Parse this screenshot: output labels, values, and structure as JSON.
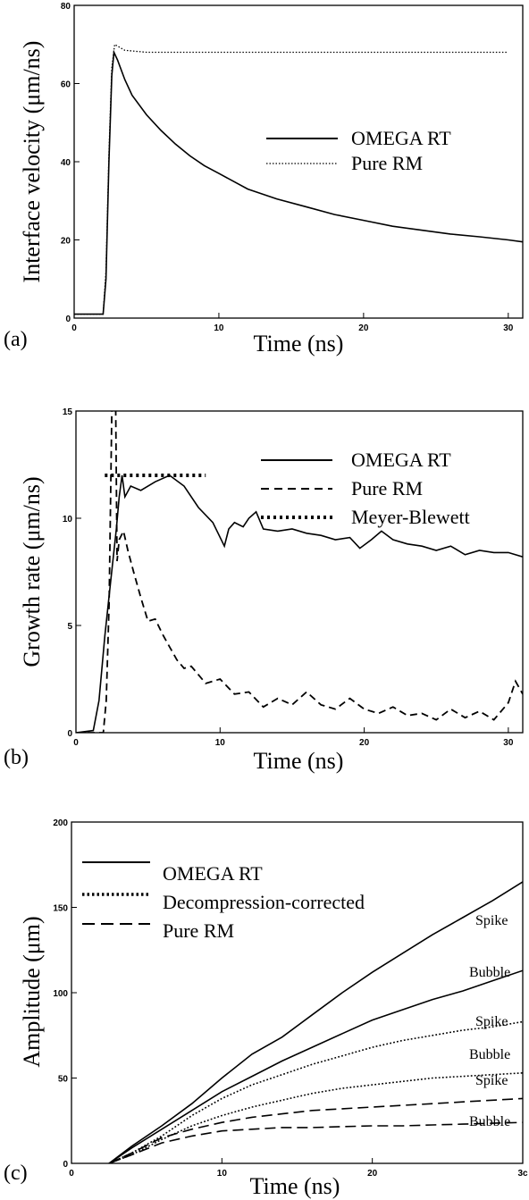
{
  "chart_data": [
    {
      "type": "line",
      "panel_label": "(a)",
      "xlabel": "Time (ns)",
      "ylabel": "Interface velocity (μm/ns)",
      "xlim": [
        0,
        31
      ],
      "ylim": [
        0,
        80
      ],
      "xticks": [
        0,
        10,
        20,
        30
      ],
      "yticks": [
        0,
        20,
        40,
        60,
        80
      ],
      "legend_position": "center-right",
      "series": [
        {
          "name": "OMEGA RT",
          "style": "solid",
          "x": [
            0,
            2.0,
            2.2,
            2.4,
            2.6,
            2.75,
            3.0,
            3.5,
            4,
            5,
            6,
            7,
            8,
            9,
            10,
            12,
            14,
            16,
            18,
            20,
            22,
            24,
            26,
            28,
            30,
            31
          ],
          "y": [
            1,
            1,
            10,
            40,
            62,
            68,
            66,
            61,
            57,
            52,
            48,
            44.5,
            41.5,
            39,
            37,
            33,
            30.5,
            28.5,
            26.5,
            25,
            23.5,
            22.5,
            21.5,
            20.8,
            20,
            19.5
          ]
        },
        {
          "name": "Pure RM",
          "style": "dotted",
          "x": [
            0,
            2.0,
            2.2,
            2.4,
            2.6,
            2.8,
            3.5,
            5,
            8,
            12,
            16,
            20,
            24,
            28,
            30
          ],
          "y": [
            1,
            1,
            12,
            42,
            64,
            70,
            68.5,
            68,
            68,
            68,
            68,
            68,
            68,
            68,
            68
          ]
        }
      ]
    },
    {
      "type": "line",
      "panel_label": "(b)",
      "xlabel": "Time (ns)",
      "ylabel": "Growth rate (μm/ns)",
      "xlim": [
        0,
        31
      ],
      "ylim": [
        0,
        15
      ],
      "xticks": [
        0,
        10,
        20,
        30
      ],
      "yticks": [
        0,
        5,
        10,
        15
      ],
      "legend_position": "top-right",
      "series": [
        {
          "name": "OMEGA RT",
          "style": "solid",
          "x": [
            0,
            1.2,
            1.6,
            2.0,
            2.4,
            2.8,
            3.0,
            3.2,
            3.4,
            3.8,
            4.5,
            5.5,
            6.5,
            7.5,
            8.5,
            9.5,
            10.3,
            10.6,
            11,
            11.6,
            12,
            12.5,
            13,
            14,
            15,
            16,
            17,
            18,
            19,
            19.7,
            20.5,
            21.2,
            22,
            23,
            24,
            25,
            26,
            27,
            28,
            29,
            30,
            31
          ],
          "y": [
            0,
            0.1,
            1.5,
            4.5,
            7,
            9.5,
            11,
            12,
            11,
            11.5,
            11.3,
            11.7,
            12,
            11.5,
            10.5,
            9.8,
            8.7,
            9.5,
            9.8,
            9.6,
            10,
            10.3,
            9.5,
            9.4,
            9.5,
            9.3,
            9.2,
            9.0,
            9.1,
            8.6,
            9.0,
            9.4,
            9.0,
            8.8,
            8.7,
            8.5,
            8.7,
            8.3,
            8.5,
            8.4,
            8.4,
            8.2
          ]
        },
        {
          "name": "Pure RM",
          "style": "dashed",
          "x": [
            0,
            1.9,
            2.1,
            2.3,
            2.5,
            2.6,
            2.75,
            2.85,
            3.0,
            3.3,
            3.6,
            4.0,
            4.5,
            5.0,
            5.5,
            6.0,
            6.5,
            7.0,
            7.5,
            8.0,
            8.5,
            9.0,
            10,
            11,
            12,
            13,
            14,
            15,
            16,
            17,
            18,
            19,
            20,
            21,
            22,
            23,
            24,
            25,
            26,
            27,
            28,
            29,
            30,
            30.5,
            31
          ],
          "y": [
            0,
            0,
            1.5,
            6,
            15.5,
            15.5,
            15.5,
            8,
            9,
            9.4,
            8.5,
            7.5,
            6.3,
            5.2,
            5.3,
            4.6,
            4.0,
            3.4,
            3.0,
            3.1,
            2.7,
            2.3,
            2.5,
            1.8,
            1.9,
            1.2,
            1.6,
            1.3,
            1.9,
            1.3,
            1.1,
            1.6,
            1.1,
            0.9,
            1.2,
            0.8,
            0.9,
            0.6,
            1.1,
            0.7,
            1.0,
            0.6,
            1.4,
            2.4,
            1.8
          ]
        },
        {
          "name": "Meyer-Blewett",
          "style": "dotted",
          "x": [
            2.0,
            9.0
          ],
          "y": [
            12,
            12
          ]
        }
      ]
    },
    {
      "type": "line",
      "panel_label": "(c)",
      "xlabel": "Time (ns)",
      "ylabel": "Amplitude (μm)",
      "xlim": [
        0,
        30
      ],
      "ylim": [
        0,
        200
      ],
      "xticks": [
        0,
        10,
        20,
        "3c"
      ],
      "yticks": [
        0,
        50,
        100,
        150,
        200
      ],
      "legend_position": "top-left",
      "annotations": [
        {
          "text": "Spike",
          "series": "OMEGA RT spike"
        },
        {
          "text": "Bubble",
          "series": "OMEGA RT bubble"
        },
        {
          "text": "Spike",
          "series": "Decompression-corrected spike"
        },
        {
          "text": "Bubble",
          "series": "Decompression-corrected bubble"
        },
        {
          "text": "Spike",
          "series": "Pure RM spike"
        },
        {
          "text": "Bubble",
          "series": "Pure RM bubble"
        }
      ],
      "series": [
        {
          "name": "OMEGA RT",
          "style": "solid",
          "x": [
            2.5,
            4,
            6,
            8,
            10,
            12,
            14,
            16,
            18,
            20,
            22,
            24,
            26,
            28,
            30
          ],
          "y": [
            0,
            10,
            22,
            35,
            50,
            64,
            74,
            87,
            100,
            112,
            123,
            134,
            144,
            154,
            165
          ]
        },
        {
          "name": "",
          "style": "solid",
          "x": [
            2.5,
            4,
            6,
            8,
            10,
            12,
            14,
            16,
            18,
            20,
            22,
            24,
            26,
            28,
            30
          ],
          "y": [
            0,
            9,
            20,
            31,
            42,
            51,
            60,
            68,
            76,
            84,
            90,
            96,
            101,
            107,
            113
          ]
        },
        {
          "name": "Decompression-corrected",
          "style": "dotted",
          "x": [
            2.5,
            4,
            6,
            8,
            10,
            12,
            14,
            16,
            18,
            20,
            22,
            24,
            26,
            28,
            30
          ],
          "y": [
            0,
            6,
            16,
            28,
            38,
            46,
            52,
            58,
            63,
            68,
            72,
            75,
            78,
            80,
            83
          ]
        },
        {
          "name": "",
          "style": "dotted",
          "x": [
            2.5,
            4,
            6,
            8,
            10,
            12,
            14,
            16,
            18,
            20,
            22,
            24,
            26,
            28,
            30
          ],
          "y": [
            0,
            5,
            14,
            22,
            28,
            33,
            37,
            41,
            44,
            46,
            48,
            50,
            51,
            52,
            53
          ]
        },
        {
          "name": "Pure RM",
          "style": "dashed",
          "x": [
            2.5,
            4,
            6,
            8,
            10,
            12,
            14,
            16,
            18,
            20,
            22,
            24,
            26,
            28,
            30
          ],
          "y": [
            0,
            6,
            15,
            20,
            24,
            27,
            29,
            31,
            32,
            33,
            34,
            35,
            36,
            37,
            38
          ]
        },
        {
          "name": "",
          "style": "dashed",
          "x": [
            2.5,
            4,
            6,
            8,
            10,
            12,
            14,
            16,
            18,
            20,
            22,
            24,
            26,
            28,
            30
          ],
          "y": [
            0,
            5,
            12,
            16,
            19,
            20,
            21,
            21,
            21.5,
            22,
            22,
            22.5,
            23,
            23.5,
            24
          ]
        }
      ]
    }
  ]
}
